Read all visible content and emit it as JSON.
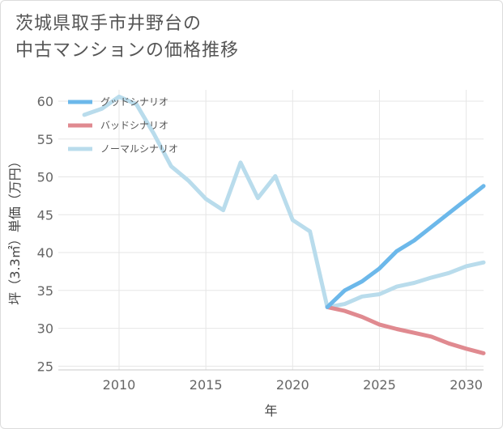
{
  "chart_data": {
    "type": "line",
    "title_lines": [
      "茨城県取手市井野台の",
      "中古マンションの価格推移"
    ],
    "xlabel": "年",
    "ylabel": "坪（3.3㎡）単価（万円）",
    "xlim": [
      2006.5,
      2031
    ],
    "ylim": [
      24.5,
      61.5
    ],
    "x_ticks": [
      2010,
      2015,
      2020,
      2025,
      2030
    ],
    "y_ticks": [
      25,
      30,
      35,
      40,
      45,
      50,
      55,
      60
    ],
    "series": [
      {
        "name": "グッドシナリオ",
        "color": "#6cb8ea",
        "x": [
          2022,
          2023,
          2024,
          2025,
          2026,
          2027,
          2028,
          2029,
          2030,
          2031
        ],
        "values": [
          32.8,
          35.0,
          36.2,
          37.9,
          40.2,
          41.6,
          43.4,
          45.2,
          47.0,
          48.8
        ]
      },
      {
        "name": "バッドシナリオ",
        "color": "#e08a90",
        "x": [
          2022,
          2023,
          2024,
          2025,
          2026,
          2027,
          2028,
          2029,
          2030,
          2031
        ],
        "values": [
          32.8,
          32.3,
          31.5,
          30.5,
          29.9,
          29.4,
          28.9,
          28.0,
          27.3,
          26.7
        ]
      },
      {
        "name": "ノーマルシナリオ",
        "color": "#b9dcec",
        "x": [
          2008,
          2009,
          2010,
          2011,
          2012,
          2013,
          2014,
          2015,
          2016,
          2017,
          2018,
          2019,
          2020,
          2021,
          2022,
          2023,
          2024,
          2025,
          2026,
          2027,
          2028,
          2029,
          2030,
          2031
        ],
        "values": [
          58.2,
          59.0,
          60.6,
          59.6,
          55.7,
          51.4,
          49.5,
          47.1,
          45.6,
          51.9,
          47.2,
          50.1,
          44.3,
          42.8,
          32.8,
          33.2,
          34.2,
          34.5,
          35.5,
          36.0,
          36.7,
          37.3,
          38.2,
          38.7
        ]
      }
    ]
  }
}
